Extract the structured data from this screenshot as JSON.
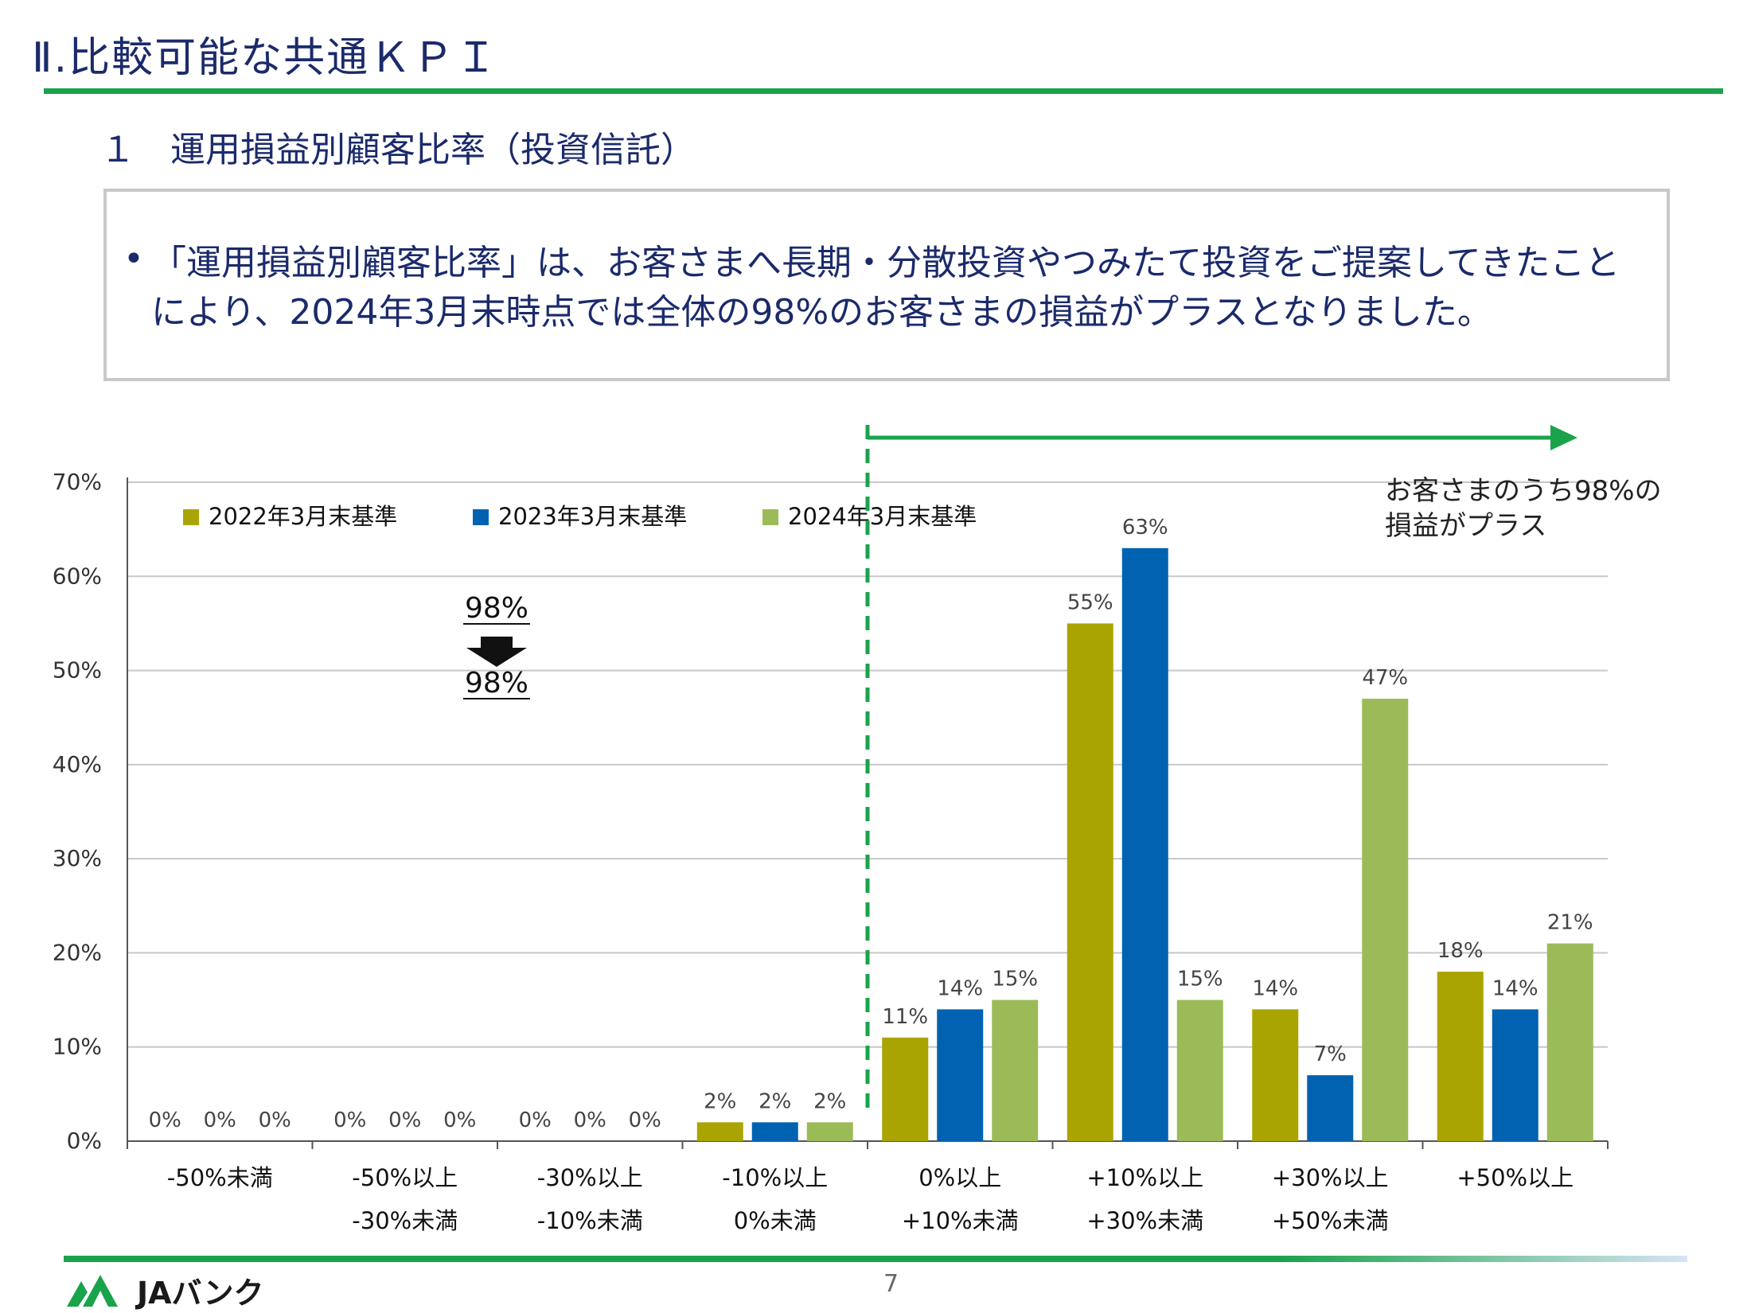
{
  "header": {
    "title": "Ⅱ.比較可能な共通ＫＰＩ",
    "subtitle": "１　運用損益別顧客比率（投資信託）"
  },
  "note": {
    "bullet": "•",
    "text": "「運用損益別顧客比率」は、お客さまへ長期・分散投資やつみたて投資をご提案してきたことにより、2024年3月末時点では全体の98%のお客さまの損益がプラスとなりました。"
  },
  "annotation": {
    "line1": "お客さまのうち98%の",
    "line2": "損益がプラス",
    "from_value": "98%",
    "to_value": "98%"
  },
  "chart_data": {
    "type": "bar",
    "categories": [
      [
        "-50%未満",
        ""
      ],
      [
        "-50%以上",
        "-30%未満"
      ],
      [
        "-30%以上",
        "-10%未満"
      ],
      [
        "-10%以上",
        "0%未満"
      ],
      [
        "0%以上",
        "+10%未満"
      ],
      [
        "+10%以上",
        "+30%未満"
      ],
      [
        "+30%以上",
        "+50%未満"
      ],
      [
        "+50%以上",
        ""
      ]
    ],
    "series": [
      {
        "name": "2022年3月末基準",
        "color": "#aaa400",
        "values": [
          0,
          0,
          0,
          2,
          11,
          55,
          14,
          18
        ],
        "labels": [
          "0%",
          "0%",
          "0%",
          "2%",
          "11%",
          "55%",
          "14%",
          "18%"
        ]
      },
      {
        "name": "2023年3月末基準",
        "color": "#0062b1",
        "values": [
          0,
          0,
          0,
          2,
          14,
          63,
          7,
          14
        ],
        "labels": [
          "0%",
          "0%",
          "0%",
          "2%",
          "14%",
          "63%",
          "7%",
          "14%"
        ]
      },
      {
        "name": "2024年3月末基準",
        "color": "#9bbb59",
        "values": [
          0,
          0,
          0,
          2,
          15,
          15,
          47,
          21
        ],
        "labels": [
          "0%",
          "0%",
          "0%",
          "2%",
          "15%",
          "15%",
          "47%",
          "21%"
        ]
      }
    ],
    "ylim": [
      0,
      70
    ],
    "yticks": [
      "0%",
      "10%",
      "20%",
      "30%",
      "40%",
      "50%",
      "60%",
      "70%"
    ],
    "grid": true,
    "legend": "top-left"
  },
  "footer": {
    "brand": "JAバンク",
    "page": "7"
  },
  "colors": {
    "accent_green": "#1aa34a",
    "title_navy": "#1b2a6b"
  }
}
